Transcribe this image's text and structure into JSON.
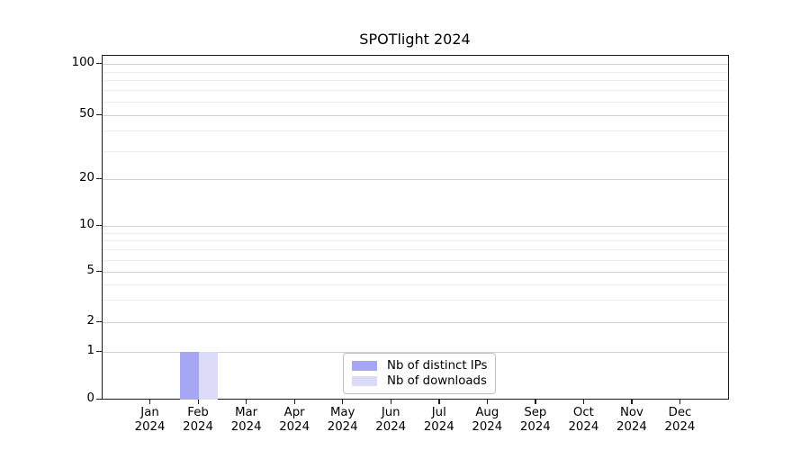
{
  "chart_data": {
    "type": "bar",
    "title": "SPOTlight 2024",
    "categories": [
      {
        "month": "Jan",
        "year": "2024"
      },
      {
        "month": "Feb",
        "year": "2024"
      },
      {
        "month": "Mar",
        "year": "2024"
      },
      {
        "month": "Apr",
        "year": "2024"
      },
      {
        "month": "May",
        "year": "2024"
      },
      {
        "month": "Jun",
        "year": "2024"
      },
      {
        "month": "Jul",
        "year": "2024"
      },
      {
        "month": "Aug",
        "year": "2024"
      },
      {
        "month": "Sep",
        "year": "2024"
      },
      {
        "month": "Oct",
        "year": "2024"
      },
      {
        "month": "Nov",
        "year": "2024"
      },
      {
        "month": "Dec",
        "year": "2024"
      }
    ],
    "series": [
      {
        "name": "Nb of distinct IPs",
        "color": "#a6a6f4",
        "values": [
          0,
          1,
          0,
          0,
          0,
          0,
          0,
          0,
          0,
          0,
          0,
          0
        ]
      },
      {
        "name": "Nb of downloads",
        "color": "#dcdcf9",
        "values": [
          0,
          1,
          0,
          0,
          0,
          0,
          0,
          0,
          0,
          0,
          0,
          0
        ]
      }
    ],
    "yaxis": {
      "scale": "symlog",
      "ticks": [
        0,
        1,
        2,
        5,
        10,
        20,
        50,
        100
      ],
      "minor_ticks": [
        3,
        4,
        6,
        7,
        8,
        9,
        30,
        40,
        60,
        70,
        80,
        90
      ],
      "range": [
        0,
        112
      ]
    },
    "xaxis": {
      "tick_format": "Mon YYYY"
    },
    "legend": {
      "position": "lower center",
      "border_color": "#c0c0c0"
    },
    "grid": {
      "on": true,
      "major_color": "#d2d2d2",
      "minor_color": "#ededed"
    },
    "style": {
      "spine_color": "#1b1b22",
      "background": "#ffffff"
    }
  }
}
